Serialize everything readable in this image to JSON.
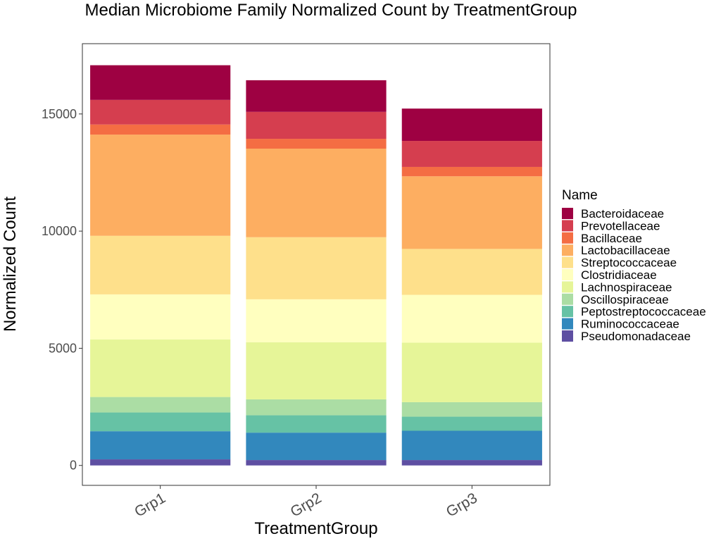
{
  "chart_data": {
    "type": "bar",
    "stacked": true,
    "title": "Median Microbiome Family Normalized Count by TreatmentGroup",
    "xlabel": "TreatmentGroup",
    "ylabel": "Normalized Count",
    "categories": [
      "Grp1",
      "Grp2",
      "Grp3"
    ],
    "ylim": [
      -850,
      18000
    ],
    "y_ticks": [
      0,
      5000,
      10000,
      15000
    ],
    "y_tick_labels": [
      "0",
      "5000",
      "10000",
      "15000"
    ],
    "grid": false,
    "legend_placement": "right",
    "legend_title": "Name",
    "series": [
      {
        "name": "Bacteroidaceae",
        "color": "#9E0142",
        "values": [
          1480,
          1350,
          1380
        ]
      },
      {
        "name": "Prevotellaceae",
        "color": "#D53E4F",
        "values": [
          1050,
          1150,
          1110
        ]
      },
      {
        "name": "Bacillaceae",
        "color": "#F46D43",
        "values": [
          430,
          420,
          400
        ]
      },
      {
        "name": "Lactobacillaceae",
        "color": "#FDAE61",
        "values": [
          4320,
          3780,
          3100
        ]
      },
      {
        "name": "Streptococcaceae",
        "color": "#FEE08B",
        "values": [
          2500,
          2650,
          1960
        ]
      },
      {
        "name": "Clostridiaceae",
        "color": "#FFFFBF",
        "values": [
          1920,
          1830,
          2040
        ]
      },
      {
        "name": "Lachnospiraceae",
        "color": "#E6F598",
        "values": [
          2460,
          2440,
          2540
        ]
      },
      {
        "name": "Oscillospiraceae",
        "color": "#ABDDA4",
        "values": [
          660,
          680,
          620
        ]
      },
      {
        "name": "Peptostreptococcaceae",
        "color": "#66C2A5",
        "values": [
          800,
          740,
          600
        ]
      },
      {
        "name": "Ruminococcaceae",
        "color": "#3288BD",
        "values": [
          1200,
          1170,
          1250
        ]
      },
      {
        "name": "Pseudomonadaceae",
        "color": "#5E4FA2",
        "values": [
          260,
          230,
          230
        ]
      }
    ]
  }
}
